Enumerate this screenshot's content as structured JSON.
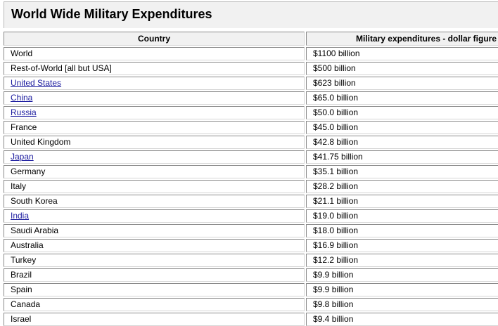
{
  "title": "World Wide Military Expenditures",
  "columns": {
    "country": "Country",
    "expenditure": "Military expenditures - dollar figure"
  },
  "rows": [
    {
      "country": "World",
      "value": "$1100 billion",
      "link": false
    },
    {
      "country": "Rest-of-World [all but USA]",
      "value": "$500 billion",
      "link": false
    },
    {
      "country": "United States",
      "value": "$623 billion",
      "link": true
    },
    {
      "country": "China",
      "value": "$65.0 billion",
      "link": true
    },
    {
      "country": "Russia",
      "value": "$50.0 billion",
      "link": true
    },
    {
      "country": "France",
      "value": "$45.0 billion",
      "link": false
    },
    {
      "country": "United Kingdom",
      "value": "$42.8 billion",
      "link": false
    },
    {
      "country": "Japan",
      "value": "$41.75 billion",
      "link": true
    },
    {
      "country": "Germany",
      "value": "$35.1 billion",
      "link": false
    },
    {
      "country": "Italy",
      "value": "$28.2 billion",
      "link": false
    },
    {
      "country": "South Korea",
      "value": "$21.1 billion",
      "link": false
    },
    {
      "country": "India",
      "value": "$19.0 billion",
      "link": true
    },
    {
      "country": "Saudi Arabia",
      "value": "$18.0 billion",
      "link": false
    },
    {
      "country": "Australia",
      "value": "$16.9 billion",
      "link": false
    },
    {
      "country": "Turkey",
      "value": "$12.2 billion",
      "link": false
    },
    {
      "country": "Brazil",
      "value": "$9.9 billion",
      "link": false
    },
    {
      "country": "Spain",
      "value": "$9.9 billion",
      "link": false
    },
    {
      "country": "Canada",
      "value": "$9.8 billion",
      "link": false
    },
    {
      "country": "Israel",
      "value": "$9.4 billion",
      "link": false
    }
  ],
  "colors": {
    "link": "#1a1a9e",
    "header_bg": "#f1f1f1"
  }
}
